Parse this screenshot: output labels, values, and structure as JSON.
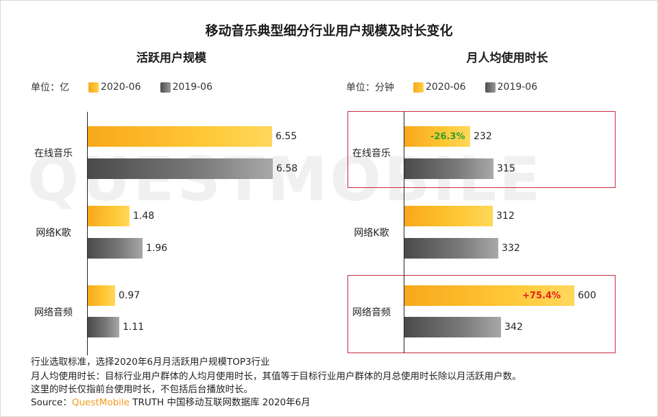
{
  "title": "移动音乐典型细分行业用户规模及时长变化",
  "watermark": "QUESTMOBILE",
  "legend": {
    "current": "2020-06",
    "previous": "2019-06"
  },
  "colors": {
    "current": "#ffc734",
    "previous": "#7a7a7a",
    "highlight_box": "#c8283c",
    "down": "#2e9e2e",
    "up": "#e0201e",
    "brand": "#f39a1b"
  },
  "chart_data": [
    {
      "type": "bar",
      "orientation": "horizontal",
      "title": "活跃用户规模",
      "unit": "单位：亿",
      "categories": [
        "在线音乐",
        "网络K歌",
        "网络音频"
      ],
      "series": [
        {
          "name": "2020-06",
          "values": [
            6.55,
            1.48,
            0.97
          ],
          "labels": [
            "6.55",
            "1.48",
            "0.97"
          ]
        },
        {
          "name": "2019-06",
          "values": [
            6.58,
            1.96,
            1.11
          ],
          "labels": [
            "6.58",
            "1.96",
            "1.11"
          ]
        }
      ],
      "xlim": [
        0,
        6.58
      ]
    },
    {
      "type": "bar",
      "orientation": "horizontal",
      "title": "月人均使用时长",
      "unit": "单位：分钟",
      "categories": [
        "在线音乐",
        "网络K歌",
        "网络音频"
      ],
      "series": [
        {
          "name": "2020-06",
          "values": [
            232,
            312,
            600
          ],
          "labels": [
            "232",
            "312",
            "600"
          ]
        },
        {
          "name": "2019-06",
          "values": [
            315,
            332,
            342
          ],
          "labels": [
            "315",
            "332",
            "342"
          ]
        }
      ],
      "xlim": [
        0,
        600
      ],
      "annotations": [
        {
          "category": "在线音乐",
          "text": "-26.3%",
          "direction": "down"
        },
        {
          "category": "网络音频",
          "text": "+75.4%",
          "direction": "up"
        }
      ]
    }
  ],
  "footer": {
    "line1": "行业选取标准，选择2020年6月月活跃用户规模TOP3行业",
    "line2": "月人均使用时长：目标行业用户群体的人均月使用时长，其值等于目标行业用户群体的月总使用时长除以月活跃用户数。",
    "line3": "这里的时长仅指前台使用时长，不包括后台播放时长。",
    "source_prefix": "Source：",
    "source_brand": "QuestMobile",
    "source_rest": " TRUTH 中国移动互联网数据库 2020年6月"
  }
}
